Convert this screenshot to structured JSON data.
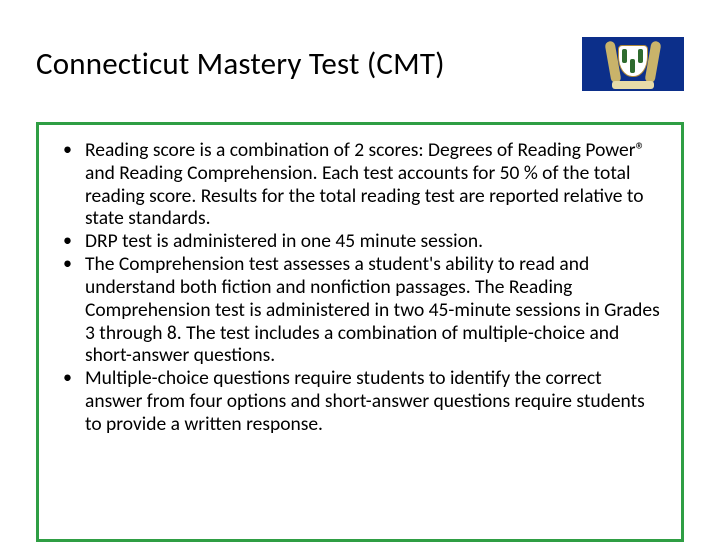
{
  "title": "Connecticut Mastery Test (CMT)",
  "flag": {
    "background": "#0c2f8a",
    "stripe": "#ffffff",
    "shield_bg": "#ffffff",
    "shield_border": "#b08a3a",
    "drape": "#c9b36a",
    "ribbon": "#e7dba8",
    "vine": "#2f6b2f"
  },
  "box": {
    "border_color": "#2f9e44"
  },
  "bullets": [
    "Reading score is a combination of  2 scores: Degrees of Reading Power® and Reading Comprehension. Each test accounts for 50 % of the total reading score. Results for the total reading test are reported relative to state standards.",
    "DRP test is administered in one 45 minute session.",
    "The Comprehension test assesses a student's ability to read and understand both fiction and nonfiction passages. The Reading Comprehension test is administered in two 45-minute sessions in Grades 3 through 8. The test includes a combination of multiple-choice and short-answer questions.",
    "Multiple-choice questions require students to identify the correct answer from four options and short-answer questions require students to provide a written response."
  ],
  "typography": {
    "title_fontsize": 31,
    "bullet_fontsize": 19.5,
    "bullet_lineheight": 1.17,
    "font_family": "Calibri"
  },
  "colors": {
    "background": "#ffffff",
    "text": "#000000"
  }
}
